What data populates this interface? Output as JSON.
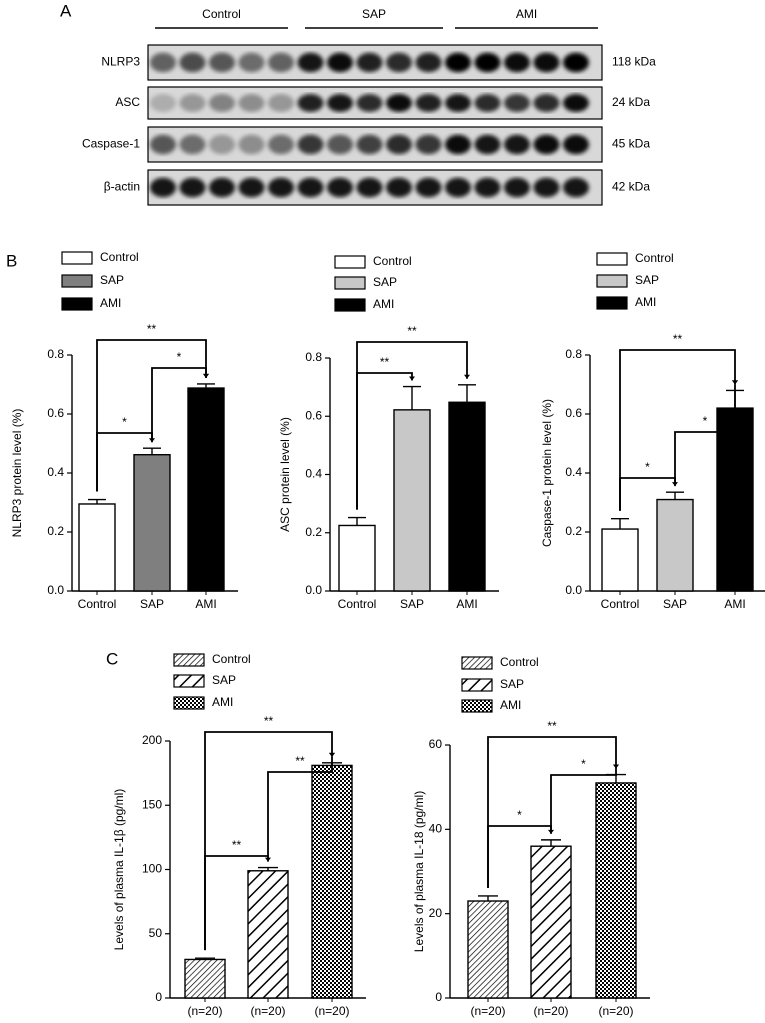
{
  "panel_labels": [
    "A",
    "B",
    "C"
  ],
  "blot": {
    "groups": [
      "Control",
      "SAP",
      "AMI"
    ],
    "rows": [
      {
        "protein": "NLRP3",
        "size": "118 kDa"
      },
      {
        "protein": "ASC",
        "size": "24 kDa"
      },
      {
        "protein": "Caspase-1",
        "size": "45 kDa"
      },
      {
        "protein": "β-actin",
        "size": "42 kDa"
      }
    ]
  },
  "chart_data": [
    {
      "type": "bar",
      "y_label": "NLRP3 protein level (%)",
      "categories": [
        "Control",
        "SAP",
        "AMI"
      ],
      "values": [
        0.295,
        0.462,
        0.688
      ],
      "errors": [
        0.015,
        0.022,
        0.014
      ],
      "colors": [
        "#ffffff",
        "#7f7f7f",
        "#000000"
      ],
      "legend": [
        "Control",
        "SAP",
        "AMI"
      ],
      "annotations": [
        "*",
        "*",
        "**"
      ],
      "ylim": [
        0,
        0.8
      ],
      "yticks": [
        {
          "value": 0,
          "label": "0.0"
        },
        0.2,
        0.4,
        0.6,
        0.8
      ]
    },
    {
      "type": "bar",
      "y_label": "ASC protein level (%)",
      "categories": [
        "Control",
        "SAP",
        "AMI"
      ],
      "values": [
        0.225,
        0.622,
        0.648
      ],
      "errors": [
        0.027,
        0.08,
        0.06
      ],
      "colors": [
        "#ffffff",
        "#c8c8c8",
        "#000000"
      ],
      "legend": [
        "Control",
        "SAP",
        "AMI"
      ],
      "annotations": [
        "**",
        "**"
      ],
      "ylim": [
        0,
        0.8
      ],
      "yticks": [
        {
          "value": 0,
          "label": "0.0"
        },
        0.2,
        0.4,
        0.6,
        0.8
      ]
    },
    {
      "type": "bar",
      "y_label": "Caspase-1 protein level (%)",
      "categories": [
        "Control",
        "SAP",
        "AMI"
      ],
      "values": [
        0.21,
        0.31,
        0.62
      ],
      "errors": [
        0.035,
        0.025,
        0.06
      ],
      "colors": [
        "#ffffff",
        "#c8c8c8",
        "#000000"
      ],
      "legend": [
        "Control",
        "SAP",
        "AMI"
      ],
      "annotations": [
        "*",
        "*",
        "**"
      ],
      "ylim": [
        0,
        0.8
      ],
      "yticks": [
        {
          "value": 0,
          "label": "0.0"
        },
        0.2,
        0.4,
        0.6,
        0.8
      ]
    },
    {
      "type": "bar",
      "y_label": "Levels of plasma IL-1β (pg/ml)",
      "categories": [
        "(n=20)",
        "(n=20)",
        "(n=20)"
      ],
      "values": [
        30,
        99,
        181
      ],
      "errors": [
        1,
        2.5,
        2
      ],
      "patterns": [
        "hatch-fine",
        "hatch-wide",
        "checker"
      ],
      "legend": [
        "Control",
        "SAP",
        "AMI"
      ],
      "annotations": [
        "**",
        "**",
        "**"
      ],
      "ylim": [
        0,
        200
      ],
      "yticks": [
        0,
        50,
        100,
        150,
        200
      ]
    },
    {
      "type": "bar",
      "y_label": "Levels of plasma IL-18 (pg/ml)",
      "categories": [
        "(n=20)",
        "(n=20)",
        "(n=20)"
      ],
      "values": [
        23,
        36,
        51
      ],
      "errors": [
        1.2,
        1.5,
        2
      ],
      "patterns": [
        "hatch-fine",
        "hatch-wide",
        "checker"
      ],
      "legend": [
        "Control",
        "SAP",
        "AMI"
      ],
      "annotations": [
        "*",
        "*",
        "**"
      ],
      "ylim": [
        0,
        60
      ],
      "yticks": [
        0,
        20,
        40,
        60
      ]
    }
  ]
}
